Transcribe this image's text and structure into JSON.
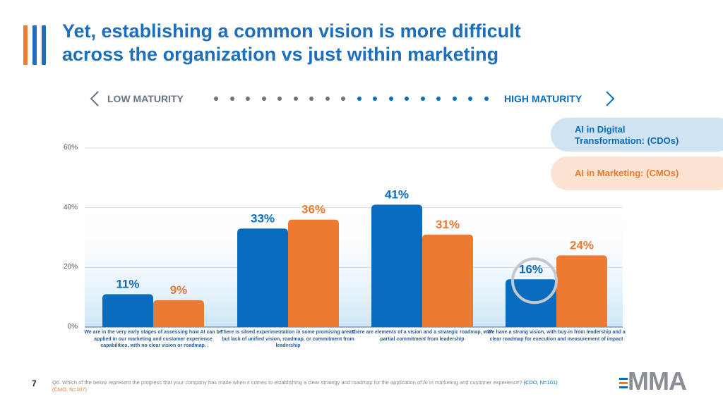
{
  "slide": {
    "title_line1": "Yet, establishing a common vision is more difficult",
    "title_line2": "across the organization vs just within marketing",
    "page_number": "7",
    "footnote_q": "Q6. Which of the below represent the progress that your company has made when it comes to establishing a clear strategy and roadmap for the application of AI in marketing and customer experience?",
    "footnote_cdo": "(CDO, N=101)",
    "footnote_cmo": "(CMO, N=107)",
    "logo_text": "MMA"
  },
  "maturity": {
    "low_label": "LOW MATURITY",
    "high_label": "HIGH MATURITY"
  },
  "colors": {
    "blue": "#0a6cbf",
    "orange": "#ec7a30",
    "title_blue": "#1d6fbe",
    "light_blue_pill": "#cfe3f3",
    "light_orange_pill": "#fde3d2",
    "gray_dot": "#6b7580"
  },
  "chart_data": {
    "type": "bar",
    "ylim": [
      0,
      60
    ],
    "yticks": [
      "0%",
      "20%",
      "40%",
      "60%"
    ],
    "ytick_values": [
      0,
      20,
      40,
      60
    ],
    "categories": [
      "We are in the very early stages of assessing how AI can be applied in our marketing and customer experience capabilities, with no clear vision or roadmap.",
      "There is siloed experimentation in some promising areas, but lack of unified vision, roadmap, or commitment from leadership",
      "There are elements of a vision and a strategic roadmap, with partial commitment from leadership",
      "We have a strong vision, with buy-in from leadership and a clear roadmap for execution and measurement of impact"
    ],
    "series": [
      {
        "name": "AI in Digital Transformation: (CDOs)",
        "values": [
          11,
          33,
          41,
          16
        ],
        "labels": [
          "11%",
          "33%",
          "41%",
          "16%"
        ]
      },
      {
        "name": "AI in Marketing: (CMOs)",
        "values": [
          9,
          36,
          31,
          24
        ],
        "labels": [
          "9%",
          "36%",
          "31%",
          "24%"
        ]
      }
    ],
    "legend_cdo_line1": "AI in Digital",
    "legend_cdo_line2": "Transformation: (CDOs)",
    "legend_cmo": "AI in Marketing: (CMOs)",
    "highlight_index": 3
  }
}
